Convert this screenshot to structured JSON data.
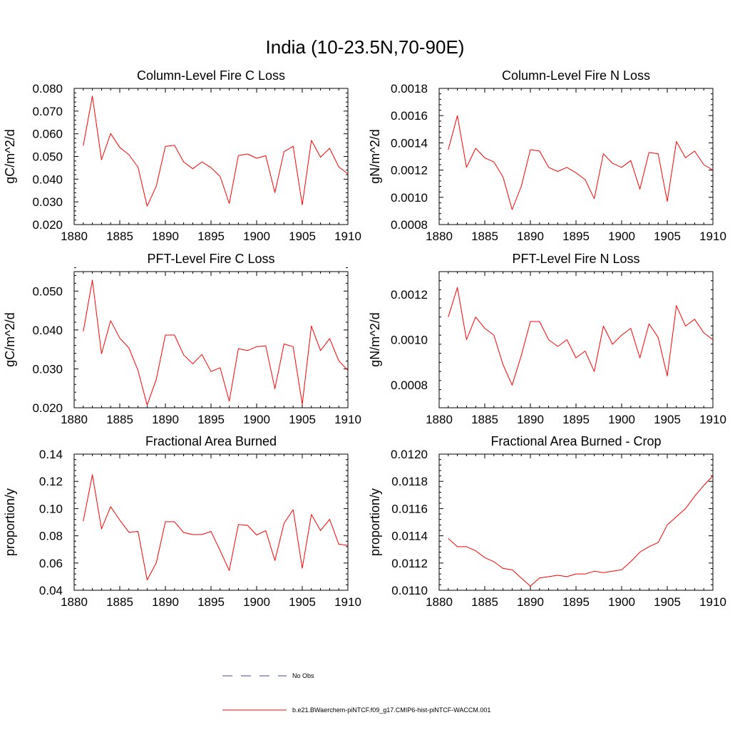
{
  "page_title": "India (10-23.5N,70-90E)",
  "series_color": "#ff0000",
  "obs_color": "#4a4aa0",
  "legend": {
    "obs_label": "No Obs",
    "model_label": "b.e21.BWaerchem-piNTCF.f09_g17.CMIP6-hist-piNTCF-WACCM.001"
  },
  "chart_data": [
    {
      "type": "line",
      "title": "Column-Level Fire C Loss",
      "ylabel": "gC/m^2/d",
      "xlim": [
        1880,
        1910
      ],
      "ylim": [
        0.02,
        0.08
      ],
      "xticks": [
        "1880",
        "1885",
        "1890",
        "1895",
        "1900",
        "1905",
        "1910"
      ],
      "yticks": [
        "0.020",
        "0.030",
        "0.040",
        "0.050",
        "0.060",
        "0.070",
        "0.080"
      ],
      "x": [
        1881,
        1882,
        1883,
        1884,
        1885,
        1886,
        1887,
        1888,
        1889,
        1890,
        1891,
        1892,
        1893,
        1894,
        1895,
        1896,
        1897,
        1898,
        1899,
        1900,
        1901,
        1902,
        1903,
        1904,
        1905,
        1906,
        1907,
        1908,
        1909,
        1910
      ],
      "values": [
        0.0547,
        0.0766,
        0.0486,
        0.0601,
        0.054,
        0.0508,
        0.0453,
        0.0281,
        0.0369,
        0.0545,
        0.0549,
        0.0476,
        0.0446,
        0.0476,
        0.0451,
        0.0412,
        0.0293,
        0.0504,
        0.0511,
        0.0492,
        0.0503,
        0.0341,
        0.0521,
        0.0545,
        0.0287,
        0.0571,
        0.0497,
        0.0536,
        0.0454,
        0.0423
      ]
    },
    {
      "type": "line",
      "title": "Column-Level Fire N Loss",
      "ylabel": "gN/m^2/d",
      "xlim": [
        1880,
        1910
      ],
      "ylim": [
        0.0008,
        0.0018
      ],
      "xticks": [
        "1880",
        "1885",
        "1890",
        "1895",
        "1900",
        "1905",
        "1910"
      ],
      "yticks": [
        "0.0008",
        "0.0010",
        "0.0012",
        "0.0014",
        "0.0016",
        "0.0018"
      ],
      "x": [
        1881,
        1882,
        1883,
        1884,
        1885,
        1886,
        1887,
        1888,
        1889,
        1890,
        1891,
        1892,
        1893,
        1894,
        1895,
        1896,
        1897,
        1898,
        1899,
        1900,
        1901,
        1902,
        1903,
        1904,
        1905,
        1906,
        1907,
        1908,
        1909,
        1910
      ],
      "values": [
        0.00135,
        0.0016,
        0.00122,
        0.00136,
        0.00129,
        0.00126,
        0.00115,
        0.00091,
        0.00108,
        0.00135,
        0.00134,
        0.00122,
        0.00119,
        0.00122,
        0.00118,
        0.00113,
        0.00099,
        0.00132,
        0.00125,
        0.00122,
        0.00127,
        0.00106,
        0.00133,
        0.00132,
        0.00097,
        0.00141,
        0.00129,
        0.00134,
        0.00124,
        0.0012
      ]
    },
    {
      "type": "line",
      "title": "PFT-Level Fire C Loss",
      "ylabel": "gC/m^2/d",
      "xlim": [
        1880,
        1910
      ],
      "ylim": [
        0.02,
        0.055
      ],
      "xticks": [
        "1880",
        "1885",
        "1890",
        "1895",
        "1900",
        "1905",
        "1910"
      ],
      "yticks": [
        "0.020",
        "0.030",
        "0.040",
        "0.050"
      ],
      "x": [
        1881,
        1882,
        1883,
        1884,
        1885,
        1886,
        1887,
        1888,
        1889,
        1890,
        1891,
        1892,
        1893,
        1894,
        1895,
        1896,
        1897,
        1898,
        1899,
        1900,
        1901,
        1902,
        1903,
        1904,
        1905,
        1906,
        1907,
        1908,
        1909,
        1910
      ],
      "values": [
        0.0396,
        0.0528,
        0.0339,
        0.0424,
        0.0379,
        0.0354,
        0.0296,
        0.0207,
        0.0273,
        0.0387,
        0.0387,
        0.0336,
        0.0313,
        0.0337,
        0.0293,
        0.0303,
        0.0217,
        0.0352,
        0.0347,
        0.0357,
        0.0359,
        0.0249,
        0.0364,
        0.0357,
        0.0209,
        0.041,
        0.0347,
        0.0378,
        0.0321,
        0.0296
      ]
    },
    {
      "type": "line",
      "title": "PFT-Level Fire N Loss",
      "ylabel": "gN/m^2/d",
      "xlim": [
        1880,
        1910
      ],
      "ylim": [
        0.0007,
        0.0013
      ],
      "xticks": [
        "1880",
        "1885",
        "1890",
        "1895",
        "1900",
        "1905",
        "1910"
      ],
      "yticks": [
        "0.0008",
        "0.0010",
        "0.0012"
      ],
      "x": [
        1881,
        1882,
        1883,
        1884,
        1885,
        1886,
        1887,
        1888,
        1889,
        1890,
        1891,
        1892,
        1893,
        1894,
        1895,
        1896,
        1897,
        1898,
        1899,
        1900,
        1901,
        1902,
        1903,
        1904,
        1905,
        1906,
        1907,
        1908,
        1909,
        1910
      ],
      "values": [
        0.0011,
        0.00123,
        0.001,
        0.0011,
        0.00105,
        0.00102,
        0.00089,
        0.0008,
        0.00093,
        0.00108,
        0.00108,
        0.001,
        0.00097,
        0.001,
        0.00092,
        0.00095,
        0.00086,
        0.00106,
        0.00098,
        0.00102,
        0.00105,
        0.00092,
        0.00107,
        0.00101,
        0.00084,
        0.00115,
        0.00106,
        0.00109,
        0.00103,
        0.001
      ]
    },
    {
      "type": "line",
      "title": "Fractional Area Burned",
      "ylabel": "proportion/y",
      "xlim": [
        1880,
        1910
      ],
      "ylim": [
        0.04,
        0.14
      ],
      "xticks": [
        "1880",
        "1885",
        "1890",
        "1895",
        "1900",
        "1905",
        "1910"
      ],
      "yticks": [
        "0.04",
        "0.06",
        "0.08",
        "0.10",
        "0.12",
        "0.14"
      ],
      "x": [
        1881,
        1882,
        1883,
        1884,
        1885,
        1886,
        1887,
        1888,
        1889,
        1890,
        1891,
        1892,
        1893,
        1894,
        1895,
        1896,
        1897,
        1898,
        1899,
        1900,
        1901,
        1902,
        1903,
        1904,
        1905,
        1906,
        1907,
        1908,
        1909,
        1910
      ],
      "values": [
        0.0907,
        0.1248,
        0.0851,
        0.1014,
        0.0915,
        0.0826,
        0.0832,
        0.0476,
        0.0601,
        0.0903,
        0.0903,
        0.0824,
        0.0809,
        0.0809,
        0.0832,
        0.0691,
        0.0545,
        0.0883,
        0.0877,
        0.0806,
        0.0838,
        0.0619,
        0.0891,
        0.0992,
        0.0562,
        0.0957,
        0.0838,
        0.0921,
        0.0738,
        0.073
      ]
    },
    {
      "type": "line",
      "title": "Fractional Area Burned - Crop",
      "ylabel": "proportion/y",
      "xlim": [
        1880,
        1910
      ],
      "ylim": [
        0.011,
        0.012
      ],
      "xticks": [
        "1880",
        "1885",
        "1890",
        "1895",
        "1900",
        "1905",
        "1910"
      ],
      "yticks": [
        "0.0110",
        "0.0112",
        "0.0114",
        "0.0116",
        "0.0118",
        "0.0120"
      ],
      "x": [
        1881,
        1882,
        1883,
        1884,
        1885,
        1886,
        1887,
        1888,
        1889,
        1890,
        1891,
        1892,
        1893,
        1894,
        1895,
        1896,
        1897,
        1898,
        1899,
        1900,
        1901,
        1902,
        1903,
        1904,
        1905,
        1906,
        1907,
        1908,
        1909,
        1910
      ],
      "values": [
        0.01138,
        0.01132,
        0.01132,
        0.01129,
        0.01124,
        0.01121,
        0.01116,
        0.01115,
        0.01109,
        0.01103,
        0.01109,
        0.0111,
        0.01111,
        0.0111,
        0.01112,
        0.01112,
        0.01114,
        0.01113,
        0.01114,
        0.01115,
        0.01121,
        0.01128,
        0.01132,
        0.01135,
        0.01148,
        0.01154,
        0.0116,
        0.01169,
        0.01177,
        0.01184
      ]
    }
  ]
}
